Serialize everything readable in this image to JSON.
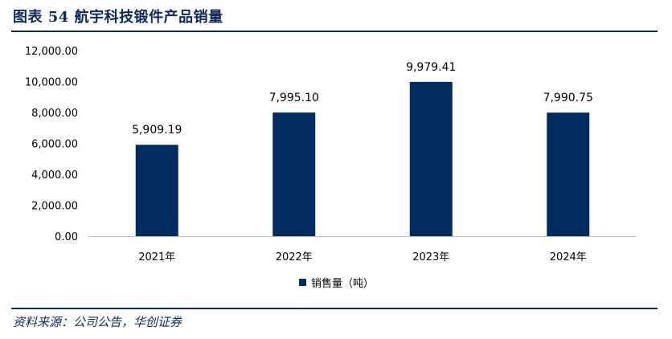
{
  "header": {
    "title": "图表 54 航宇科技锻件产品销量"
  },
  "footer": {
    "source": "资料来源：公司公告，华创证券"
  },
  "colors": {
    "bar": "#002c5f",
    "accent": "#0d2a5c"
  },
  "chart_data": {
    "type": "bar",
    "categories": [
      "2021年",
      "2022年",
      "2023年",
      "2024年"
    ],
    "series": [
      {
        "name": "销售量（吨）",
        "values": [
          5909.19,
          7995.1,
          9979.41,
          7990.75
        ]
      }
    ],
    "data_labels": [
      "5,909.19",
      "7,995.10",
      "9,979.41",
      "7,990.75"
    ],
    "yticks": [
      "0.00",
      "2,000.00",
      "4,000.00",
      "6,000.00",
      "8,000.00",
      "10,000.00",
      "12,000.00"
    ],
    "ylim": [
      0,
      12000
    ],
    "legend": "bottom",
    "grid": false
  }
}
